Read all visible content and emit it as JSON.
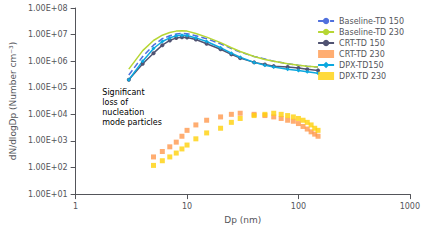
{
  "chart_data": {
    "type": "line",
    "xlabel": "Dp (nm)",
    "ylabel": "dN/dlogDp (Number cm⁻³)",
    "annotation": "Significant\nloss of\nnucleation\nmode particles",
    "log": true,
    "grid": false,
    "legend": "upper right",
    "xlim": [
      1,
      1000
    ],
    "ylim": [
      10.0,
      100000000.0
    ],
    "xticks": [
      1,
      10,
      100,
      1000
    ],
    "yticks": [
      {
        "value": 10.0,
        "label": "1.00E+01"
      },
      {
        "value": 100.0,
        "label": "1.00E+02"
      },
      {
        "value": 1000.0,
        "label": "1.00E+03"
      },
      {
        "value": 10000.0,
        "label": "1.00E+04"
      },
      {
        "value": 100000.0,
        "label": "1.00E+05"
      },
      {
        "value": 1000000.0,
        "label": "1.00E+06"
      },
      {
        "value": 10000000.0,
        "label": "1.00E+07"
      },
      {
        "value": 100000000.0,
        "label": "1.00E+08"
      }
    ],
    "series": [
      {
        "name": "Baseline-TD 150",
        "type": "line",
        "line_style": "dashed",
        "x": [
          3,
          4,
          5,
          6,
          7,
          8,
          9,
          10,
          12,
          15,
          20,
          25,
          30,
          40,
          50,
          60,
          80,
          100,
          120,
          150
        ],
        "values": [
          300000.0,
          1500000.0,
          4000000.0,
          7000000.0,
          9000000.0,
          10500000.0,
          11000000.0,
          10800000.0,
          9000000.0,
          7000000.0,
          4500000.0,
          3000000.0,
          2200000.0,
          1500000.0,
          1200000.0,
          1000000.0,
          800000.0,
          700000.0,
          650000.0,
          600000.0
        ]
      },
      {
        "name": "Baseline-TD 230",
        "type": "line",
        "line_style": "solid",
        "x": [
          3,
          4,
          5,
          6,
          7,
          8,
          9,
          10,
          12,
          15,
          20,
          25,
          30,
          40,
          50,
          60,
          80,
          100,
          120,
          150
        ],
        "values": [
          500000.0,
          2500000.0,
          6000000.0,
          9500000.0,
          12000000.0,
          13500000.0,
          14000000.0,
          13500000.0,
          11000000.0,
          8000000.0,
          5000000.0,
          3200000.0,
          2300000.0,
          1500000.0,
          1150000.0,
          1000000.0,
          800000.0,
          700000.0,
          650000.0,
          600000.0
        ]
      },
      {
        "name": "CRT-TD 150",
        "type": "line",
        "line_style": "solid",
        "marker": "circle",
        "x": [
          3,
          4,
          5,
          6,
          7,
          8,
          9,
          10,
          12,
          15,
          20,
          25,
          30,
          40,
          50,
          60,
          80,
          100,
          120,
          150
        ],
        "values": [
          200000.0,
          800000.0,
          2000000.0,
          4000000.0,
          6000000.0,
          7500000.0,
          8000000.0,
          7800000.0,
          6500000.0,
          4500000.0,
          2800000.0,
          1800000.0,
          1300000.0,
          900000.0,
          750000.0,
          650000.0,
          600000.0,
          550000.0,
          500000.0,
          450000.0
        ]
      },
      {
        "name": "CRT-TD 230",
        "type": "scatter",
        "marker": "square",
        "x": [
          5,
          6,
          7,
          8,
          9,
          10,
          12,
          15,
          20,
          25,
          30,
          40,
          50,
          60,
          70,
          80,
          90,
          100,
          110,
          120,
          130,
          140,
          150
        ],
        "values": [
          250.0,
          400.0,
          600.0,
          900.0,
          1500.0,
          2500.0,
          4000.0,
          6000.0,
          8000.0,
          10000.0,
          11000.0,
          10000.0,
          9000.0,
          8000.0,
          7000.0,
          6000.0,
          5500.0,
          4500.0,
          3500.0,
          2800.0,
          2200.0,
          1800.0,
          1500.0
        ]
      },
      {
        "name": "DPX-TD150",
        "type": "line",
        "line_style": "solid",
        "marker": "diamond",
        "x": [
          3,
          4,
          5,
          6,
          7,
          8,
          9,
          10,
          12,
          15,
          20,
          25,
          30,
          40,
          50,
          60,
          80,
          100,
          120,
          150
        ],
        "values": [
          200000.0,
          1000000.0,
          3000000.0,
          5500000.0,
          7500000.0,
          9000000.0,
          9500000.0,
          9200000.0,
          7500000.0,
          5500000.0,
          3200000.0,
          2000000.0,
          1400000.0,
          900000.0,
          700000.0,
          600000.0,
          500000.0,
          450000.0,
          400000.0,
          350000.0
        ]
      },
      {
        "name": "DPX-TD 230",
        "type": "scatter",
        "marker": "square",
        "x": [
          5,
          6,
          7,
          8,
          9,
          10,
          12,
          15,
          20,
          25,
          30,
          40,
          50,
          60,
          70,
          80,
          90,
          100,
          110,
          120,
          130,
          140,
          150
        ],
        "values": [
          120.0,
          180.0,
          250.0,
          350.0,
          500.0,
          700.0,
          1200.0,
          2000.0,
          3000.0,
          5000.0,
          7000.0,
          9000.0,
          10000.0,
          11000.0,
          10000.0,
          9000.0,
          8000.0,
          7000.0,
          6000.0,
          5000.0,
          4000.0,
          3000.0,
          2500.0
        ]
      }
    ]
  }
}
